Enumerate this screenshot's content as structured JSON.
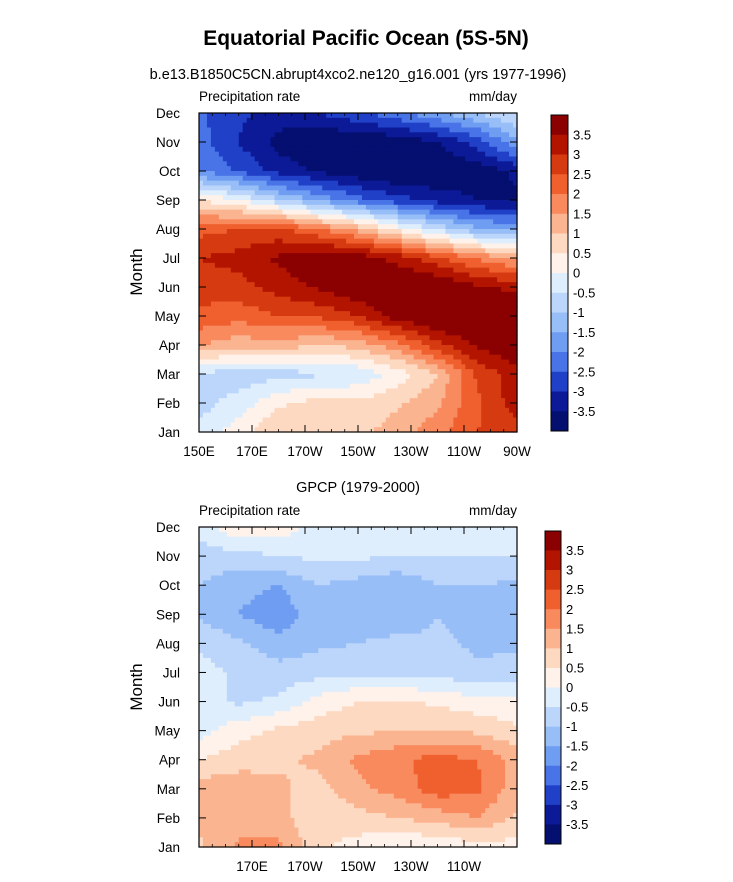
{
  "figure": {
    "title": "Equatorial Pacific Ocean (5S-5N)"
  },
  "scale": {
    "levels": [
      "3.5",
      "3",
      "2.5",
      "2",
      "1.5",
      "1",
      "0.5",
      "0",
      "-0.5",
      "-1",
      "-1.5",
      "-2",
      "-2.5",
      "-3",
      "-3.5"
    ],
    "colors": [
      "#8b0000",
      "#b31400",
      "#d63a10",
      "#f0602e",
      "#f88a5e",
      "#fbb490",
      "#fdd9c2",
      "#fff2ea",
      "#dfeefd",
      "#bcd6fb",
      "#98bef8",
      "#6f9df2",
      "#4874e8",
      "#2140c8",
      "#0c1a98",
      "#050f70"
    ]
  },
  "chart_data": [
    {
      "type": "heatmap",
      "title": "b.e13.B1850C5CN.abrupt4xco2.ne120_g16.001 (yrs 1977-1996)",
      "left_label": "Precipitation rate",
      "right_label": "mm/day",
      "ylabel": "Month",
      "xlabel": "",
      "x_tick_labels": [
        "150E",
        "170E",
        "170W",
        "150W",
        "130W",
        "110W",
        "90W"
      ],
      "x_ticks_deg": [
        150,
        170,
        190,
        210,
        230,
        250,
        270
      ],
      "xlim": [
        150,
        270
      ],
      "y_tick_labels": [
        "Jan",
        "Feb",
        "Mar",
        "Apr",
        "May",
        "Jun",
        "Jul",
        "Aug",
        "Sep",
        "Oct",
        "Nov",
        "Dec"
      ],
      "colorbar_levels": [
        3.5,
        3,
        2.5,
        2,
        1.5,
        1,
        0.5,
        0,
        -0.5,
        -1,
        -1.5,
        -2,
        -2.5,
        -3,
        -3.5
      ],
      "lon": [
        150,
        165,
        180,
        195,
        210,
        225,
        240,
        255,
        270
      ],
      "values": [
        [
          -0.4,
          0.3,
          1.0,
          0.9,
          0.8,
          1.3,
          1.8,
          2.5,
          2.8
        ],
        [
          -0.7,
          -0.3,
          0.4,
          0.7,
          0.6,
          0.9,
          1.4,
          2.4,
          3.3
        ],
        [
          -0.6,
          -0.8,
          -0.7,
          -0.6,
          -0.4,
          0.2,
          1.0,
          2.6,
          3.3
        ],
        [
          1.5,
          1.2,
          1.3,
          1.0,
          1.2,
          1.8,
          2.8,
          3.6,
          4.0
        ],
        [
          2.4,
          2.2,
          2.5,
          2.6,
          3.0,
          3.8,
          4.2,
          4.3,
          4.3
        ],
        [
          2.7,
          2.8,
          3.2,
          3.6,
          4.0,
          4.2,
          4.1,
          3.6,
          3.3
        ],
        [
          3.0,
          3.2,
          3.6,
          4.0,
          3.8,
          3.3,
          2.6,
          1.9,
          1.4
        ],
        [
          2.3,
          2.5,
          2.6,
          2.0,
          1.3,
          0.3,
          -0.6,
          -1.4,
          -1.6
        ],
        [
          0.5,
          0.0,
          -0.9,
          -1.6,
          -2.3,
          -2.8,
          -3.2,
          -3.5,
          -3.6
        ],
        [
          -2.0,
          -2.6,
          -3.2,
          -3.6,
          -3.9,
          -4.1,
          -4.0,
          -3.8,
          -3.4
        ],
        [
          -2.3,
          -3.0,
          -3.7,
          -4.0,
          -4.0,
          -3.9,
          -3.5,
          -2.8,
          -1.6
        ],
        [
          -2.4,
          -2.9,
          -3.2,
          -3.0,
          -2.6,
          -2.1,
          -1.6,
          -1.0,
          -0.4
        ]
      ]
    },
    {
      "type": "heatmap",
      "title": "GPCP (1979-2000)",
      "left_label": "Precipitation rate",
      "right_label": "mm/day",
      "ylabel": "Month",
      "xlabel": "",
      "x_tick_labels": [
        "170E",
        "170W",
        "150W",
        "130W",
        "110W"
      ],
      "x_ticks_deg": [
        170,
        190,
        210,
        230,
        250
      ],
      "xlim": [
        150,
        270
      ],
      "y_tick_labels": [
        "Jan",
        "Feb",
        "Mar",
        "Apr",
        "May",
        "Jun",
        "Jul",
        "Aug",
        "Sep",
        "Oct",
        "Nov",
        "Dec"
      ],
      "colorbar_levels": [
        3.5,
        3,
        2.5,
        2,
        1.5,
        1,
        0.5,
        0,
        -0.5,
        -1,
        -1.5,
        -2,
        -2.5,
        -3,
        -3.5
      ],
      "lon": [
        150,
        165,
        180,
        195,
        210,
        225,
        240,
        255,
        270
      ],
      "values": [
        [
          0.9,
          1.6,
          1.6,
          0.6,
          0.3,
          0.0,
          0.1,
          0.3,
          0.3
        ],
        [
          1.1,
          1.3,
          1.2,
          0.6,
          0.8,
          1.0,
          1.2,
          1.5,
          0.9
        ],
        [
          1.3,
          1.3,
          1.1,
          0.8,
          1.4,
          1.7,
          2.3,
          2.1,
          1.2
        ],
        [
          0.5,
          0.8,
          0.9,
          1.1,
          1.6,
          1.9,
          2.2,
          2.0,
          1.3
        ],
        [
          -0.2,
          0.3,
          0.6,
          0.8,
          0.9,
          1.0,
          1.0,
          0.9,
          0.6
        ],
        [
          -0.3,
          -0.6,
          -0.4,
          0.2,
          0.5,
          0.6,
          0.4,
          0.2,
          0.1
        ],
        [
          -0.3,
          -0.6,
          -0.8,
          -0.7,
          -0.6,
          -0.7,
          -0.7,
          -0.9,
          -0.8
        ],
        [
          -0.6,
          -0.9,
          -1.3,
          -1.1,
          -1.0,
          -0.8,
          -0.9,
          -1.1,
          -1.1
        ],
        [
          -1.1,
          -1.5,
          -1.9,
          -1.1,
          -1.4,
          -1.5,
          -1.0,
          -1.2,
          -1.4
        ],
        [
          -1.0,
          -1.3,
          -1.5,
          -1.0,
          -1.2,
          -1.4,
          -1.0,
          -1.0,
          -1.1
        ],
        [
          -0.8,
          -0.7,
          -0.5,
          -0.4,
          -0.4,
          -0.5,
          -0.5,
          -0.5,
          -0.5
        ],
        [
          -0.3,
          0.5,
          0.3,
          -0.2,
          -0.4,
          -0.3,
          -0.2,
          -0.2,
          -0.1
        ]
      ]
    }
  ]
}
